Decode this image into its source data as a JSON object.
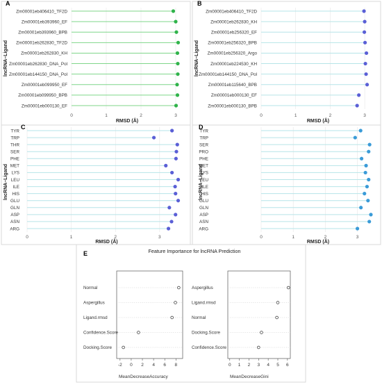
{
  "chart_data": [
    {
      "panel": "A",
      "type": "scatter",
      "style": "lollipop",
      "ylabel": "lncRNA–Ligand",
      "xlabel": "RMSD (Å)",
      "xticks": [
        "0",
        "1",
        "2",
        "3"
      ],
      "xlim": [
        0,
        3.2
      ],
      "color": "#2fb34a",
      "stem_color": "#7fd68a",
      "categories": [
        "Zm00001eb406410_TF2D",
        "Zm00001eb393960_EF",
        "Zm00001eb393960_BPB",
        "Zm00001eb262830_TF2D",
        "Zm00001eb262830_KH",
        "Zm00001eb262830_DNA_Pol",
        "Zm00001eb144150_DNA_Pol",
        "Zm00001eb099950_EF",
        "Zm00001eb099950_BPB",
        "Zm00001eb000130_EF"
      ],
      "values": [
        2.93,
        3.0,
        3.02,
        3.07,
        3.05,
        3.06,
        3.06,
        3.04,
        3.05,
        3.01
      ]
    },
    {
      "panel": "B",
      "type": "scatter",
      "style": "lollipop",
      "ylabel": "lncRNA–Ligand",
      "xlabel": "RMSD (Å)",
      "xticks": [
        "0",
        "1",
        "2",
        "3"
      ],
      "xlim": [
        0,
        3.3
      ],
      "color": "#5a5fd6",
      "stem_color": "#b6e4e8",
      "categories": [
        "Zm00001eb406410_TF2D",
        "Zm00001eb262830_KH",
        "Zm00001eb256320_EF",
        "Zm00001eb256320_BPB",
        "Zm00001eb256320_Argo",
        "Zm00001eb224530_KH",
        "Zm00001eb144150_DNA_Pol",
        "Zm00001eb115640_BPB",
        "Zm00001eb000130_EF",
        "Zm00001eb000130_BPB"
      ],
      "values": [
        2.98,
        3.0,
        2.99,
        3.01,
        3.05,
        3.02,
        3.04,
        3.07,
        2.83,
        2.78
      ]
    },
    {
      "panel": "C",
      "type": "scatter",
      "style": "lollipop",
      "ylabel": "lncRNA–Ligand",
      "xlabel": "RMSD (Å)",
      "xticks": [
        "0",
        "1",
        "2",
        "3"
      ],
      "xlim": [
        0,
        3.6
      ],
      "color": "#5a5fd6",
      "stem_color": "#b6e4e8",
      "categories": [
        "TYR",
        "TRP",
        "THR",
        "SER",
        "PHE",
        "MET",
        "LYS",
        "LEU",
        "ILE",
        "HIS",
        "GLU",
        "GLN",
        "ASP",
        "ASN",
        "ARG"
      ],
      "values": [
        3.28,
        2.87,
        3.4,
        3.38,
        3.37,
        3.14,
        3.28,
        3.42,
        3.35,
        3.36,
        3.42,
        3.22,
        3.36,
        3.27,
        3.2
      ]
    },
    {
      "panel": "D",
      "type": "scatter",
      "style": "lollipop",
      "ylabel": "lncRNA–Ligand",
      "xlabel": "RMSD (Å)",
      "xticks": [
        "0",
        "1",
        "2",
        "3"
      ],
      "xlim": [
        0,
        3.55
      ],
      "color": "#3a9bd8",
      "stem_color": "#b6e4e8",
      "categories": [
        "TYR",
        "TRP",
        "SER",
        "PRO",
        "PHE",
        "MET",
        "LYS",
        "LEU",
        "ILE",
        "HIS",
        "GLU",
        "GLN",
        "ASP",
        "ASN",
        "ARG"
      ],
      "values": [
        3.1,
        2.93,
        3.38,
        3.35,
        3.13,
        3.27,
        3.25,
        3.35,
        3.3,
        3.22,
        3.33,
        3.11,
        3.42,
        3.37,
        3.0
      ]
    },
    {
      "panel": "E",
      "type": "scatter",
      "style": "dotchart",
      "title": "Feature Importance for lncRNA Prediction",
      "subplots": [
        {
          "xlabel": "MeanDecreaseAccuracy",
          "xticks": [
            "-2",
            "0",
            "2",
            "4",
            "6",
            "8"
          ],
          "xlim": [
            -2.6,
            9.2
          ],
          "categories": [
            "Normal",
            "Aspergillus",
            "Ligand.rmsd",
            "Confidence.Score",
            "Docking.Score"
          ],
          "values": [
            8.5,
            7.9,
            7.3,
            1.3,
            -1.4
          ]
        },
        {
          "xlabel": "MeanDecreaseGini",
          "xticks": [
            "0",
            "1",
            "2",
            "3",
            "4",
            "5",
            "6"
          ],
          "xlim": [
            -0.2,
            6.3
          ],
          "categories": [
            "Aspergillus",
            "Ligand.rmsd",
            "Normal",
            "Docking.Score",
            "Confidence.Score"
          ],
          "values": [
            6.1,
            5.0,
            4.9,
            3.3,
            3.0
          ]
        }
      ]
    }
  ]
}
